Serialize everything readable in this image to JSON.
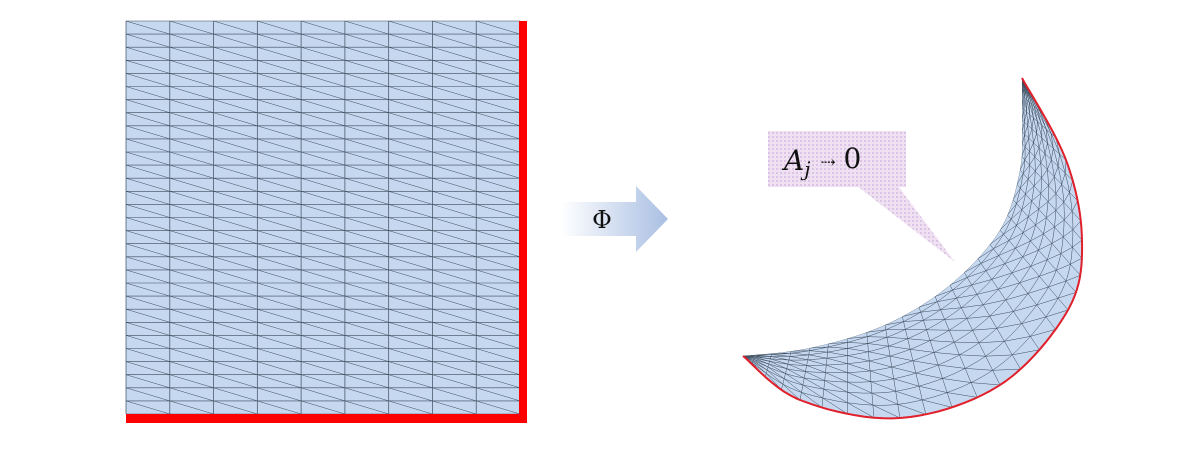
{
  "figure": {
    "map_label": "Φ",
    "callout": {
      "variable": "A",
      "subscript": "j",
      "arrow": "⇢",
      "limit": "0"
    },
    "colors": {
      "mesh_fill": "#c5d8f0",
      "mesh_line": "#3a4a5a",
      "boundary": "#ff0000",
      "arrow_start": "#ffffff",
      "arrow_end": "#a9bfe3",
      "callout_fill": "#ecdcf0"
    },
    "mesh": {
      "columns": 9,
      "rows": 30
    }
  }
}
